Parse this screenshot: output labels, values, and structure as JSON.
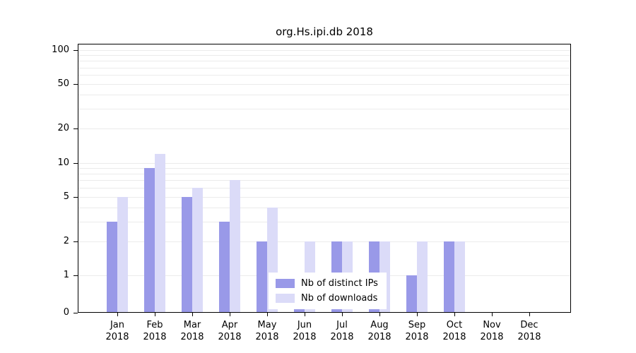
{
  "chart_data": {
    "type": "bar",
    "title": "org.Hs.ipi.db 2018",
    "categories": [
      "Jan",
      "Feb",
      "Mar",
      "Apr",
      "May",
      "Jun",
      "Jul",
      "Aug",
      "Sep",
      "Oct",
      "Nov",
      "Dec"
    ],
    "category_year": "2018",
    "series": [
      {
        "name": "Nb of distinct IPs",
        "color": "#9999e8",
        "values": [
          3,
          9,
          5,
          3,
          2,
          1,
          2,
          2,
          1,
          2,
          0,
          0
        ]
      },
      {
        "name": "Nb of downloads",
        "color": "#dbdbf8",
        "values": [
          5,
          12,
          6,
          7,
          4,
          2,
          2,
          2,
          2,
          2,
          0,
          0
        ]
      }
    ],
    "yticks": [
      0,
      1,
      2,
      5,
      10,
      20,
      50,
      100
    ],
    "gridline_values": [
      1,
      2,
      3,
      4,
      5,
      6,
      7,
      8,
      9,
      10,
      20,
      30,
      40,
      50,
      60,
      70,
      80,
      90,
      100
    ],
    "yscale": "log-with-zero-baseline",
    "ylim": [
      0,
      100
    ],
    "grid": true,
    "legend_position": "inside-bottom-center",
    "colors": {
      "axis": "#000000",
      "gridline": "#ebebeb",
      "background": "#ffffff"
    }
  }
}
